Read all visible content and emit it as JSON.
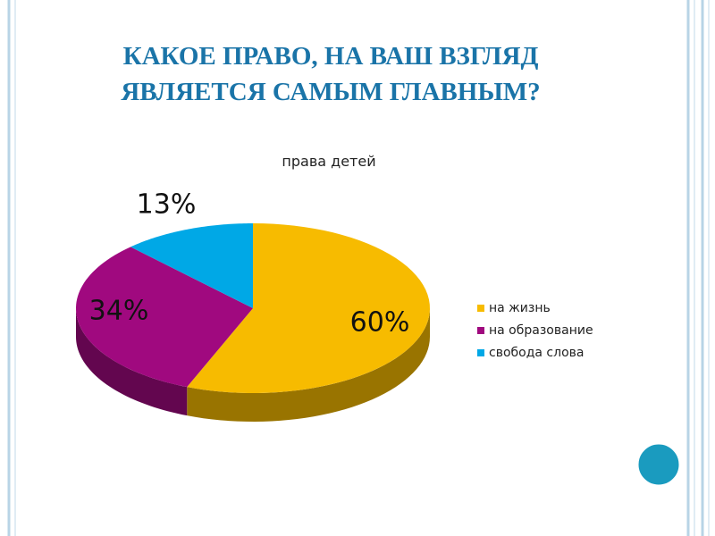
{
  "slide": {
    "title_lines": [
      "КАКОЕ ПРАВО, НА ВАШ ВЗГЛЯД",
      "ЯВЛЯЕТСЯ САМЫМ ГЛАВНЫМ?"
    ]
  },
  "chart_data": {
    "type": "pie",
    "title": "права детей",
    "categories": [
      "на жизнь",
      "на образование",
      "свобода слова"
    ],
    "values": [
      60,
      34,
      13
    ],
    "value_labels": [
      "60%",
      "34%",
      "13%"
    ],
    "colors": [
      "#f7bb00",
      "#a0097f",
      "#00a8e6"
    ],
    "legend": "right"
  }
}
